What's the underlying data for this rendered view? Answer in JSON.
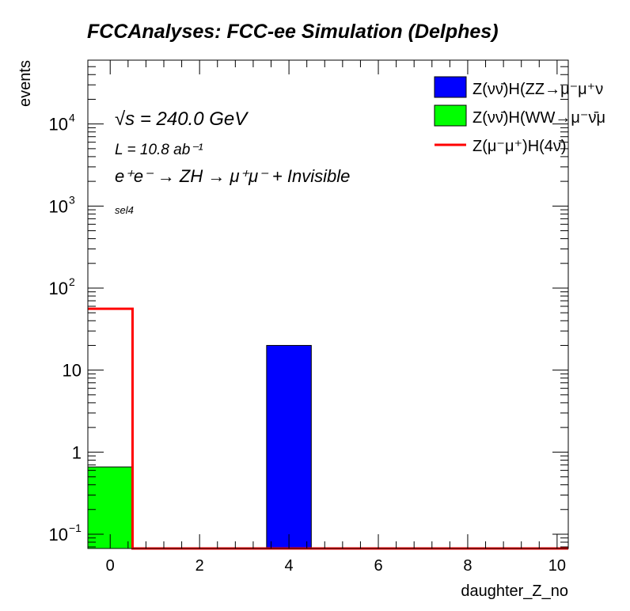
{
  "chart_data": {
    "type": "bar",
    "title": "FCCAnalyses: FCC-ee Simulation (Delphes)",
    "xlabel": "daughter_Z_no",
    "ylabel": "events",
    "xlim": [
      -0.5,
      10.25
    ],
    "ylim": [
      0.067,
      60000
    ],
    "yscale": "log",
    "xticks": [
      "0",
      "2",
      "4",
      "6",
      "8",
      "10"
    ],
    "xtick_values": [
      0,
      2,
      4,
      6,
      8,
      10
    ],
    "yticks": [
      {
        "value": 0.1,
        "base": "10",
        "exp": "−1"
      },
      {
        "value": 1,
        "base": "1",
        "exp": ""
      },
      {
        "value": 10,
        "base": "10",
        "exp": ""
      },
      {
        "value": 100,
        "base": "10",
        "exp": "2"
      },
      {
        "value": 1000,
        "base": "10",
        "exp": "3"
      },
      {
        "value": 10000,
        "base": "10",
        "exp": "4"
      }
    ],
    "series": [
      {
        "name": "Z(νν̄)H(ZZ→μ⁻μ⁺ν",
        "style": "filled",
        "color": "#0000ff",
        "bins": [
          {
            "x": 4,
            "value": 20
          }
        ]
      },
      {
        "name": "Z(νν̄)H(WW→μ⁻ν̄μ",
        "style": "filled",
        "color": "#00ff00",
        "bins": [
          {
            "x": 0,
            "value": 0.66
          }
        ]
      },
      {
        "name": "Z(μ⁻μ⁺)H(4ν̄)",
        "style": "line",
        "color": "#ff0000",
        "bins": [
          {
            "x": 0,
            "value": 56
          }
        ]
      }
    ],
    "legend_placement": "top-right",
    "annotations": {
      "energy": "√s = 240.0 GeV",
      "lumi": "L = 10.8 ab⁻¹",
      "process": "e⁺e⁻ → ZH → μ⁺μ⁻ + Invisible",
      "selection": "sel4"
    }
  }
}
